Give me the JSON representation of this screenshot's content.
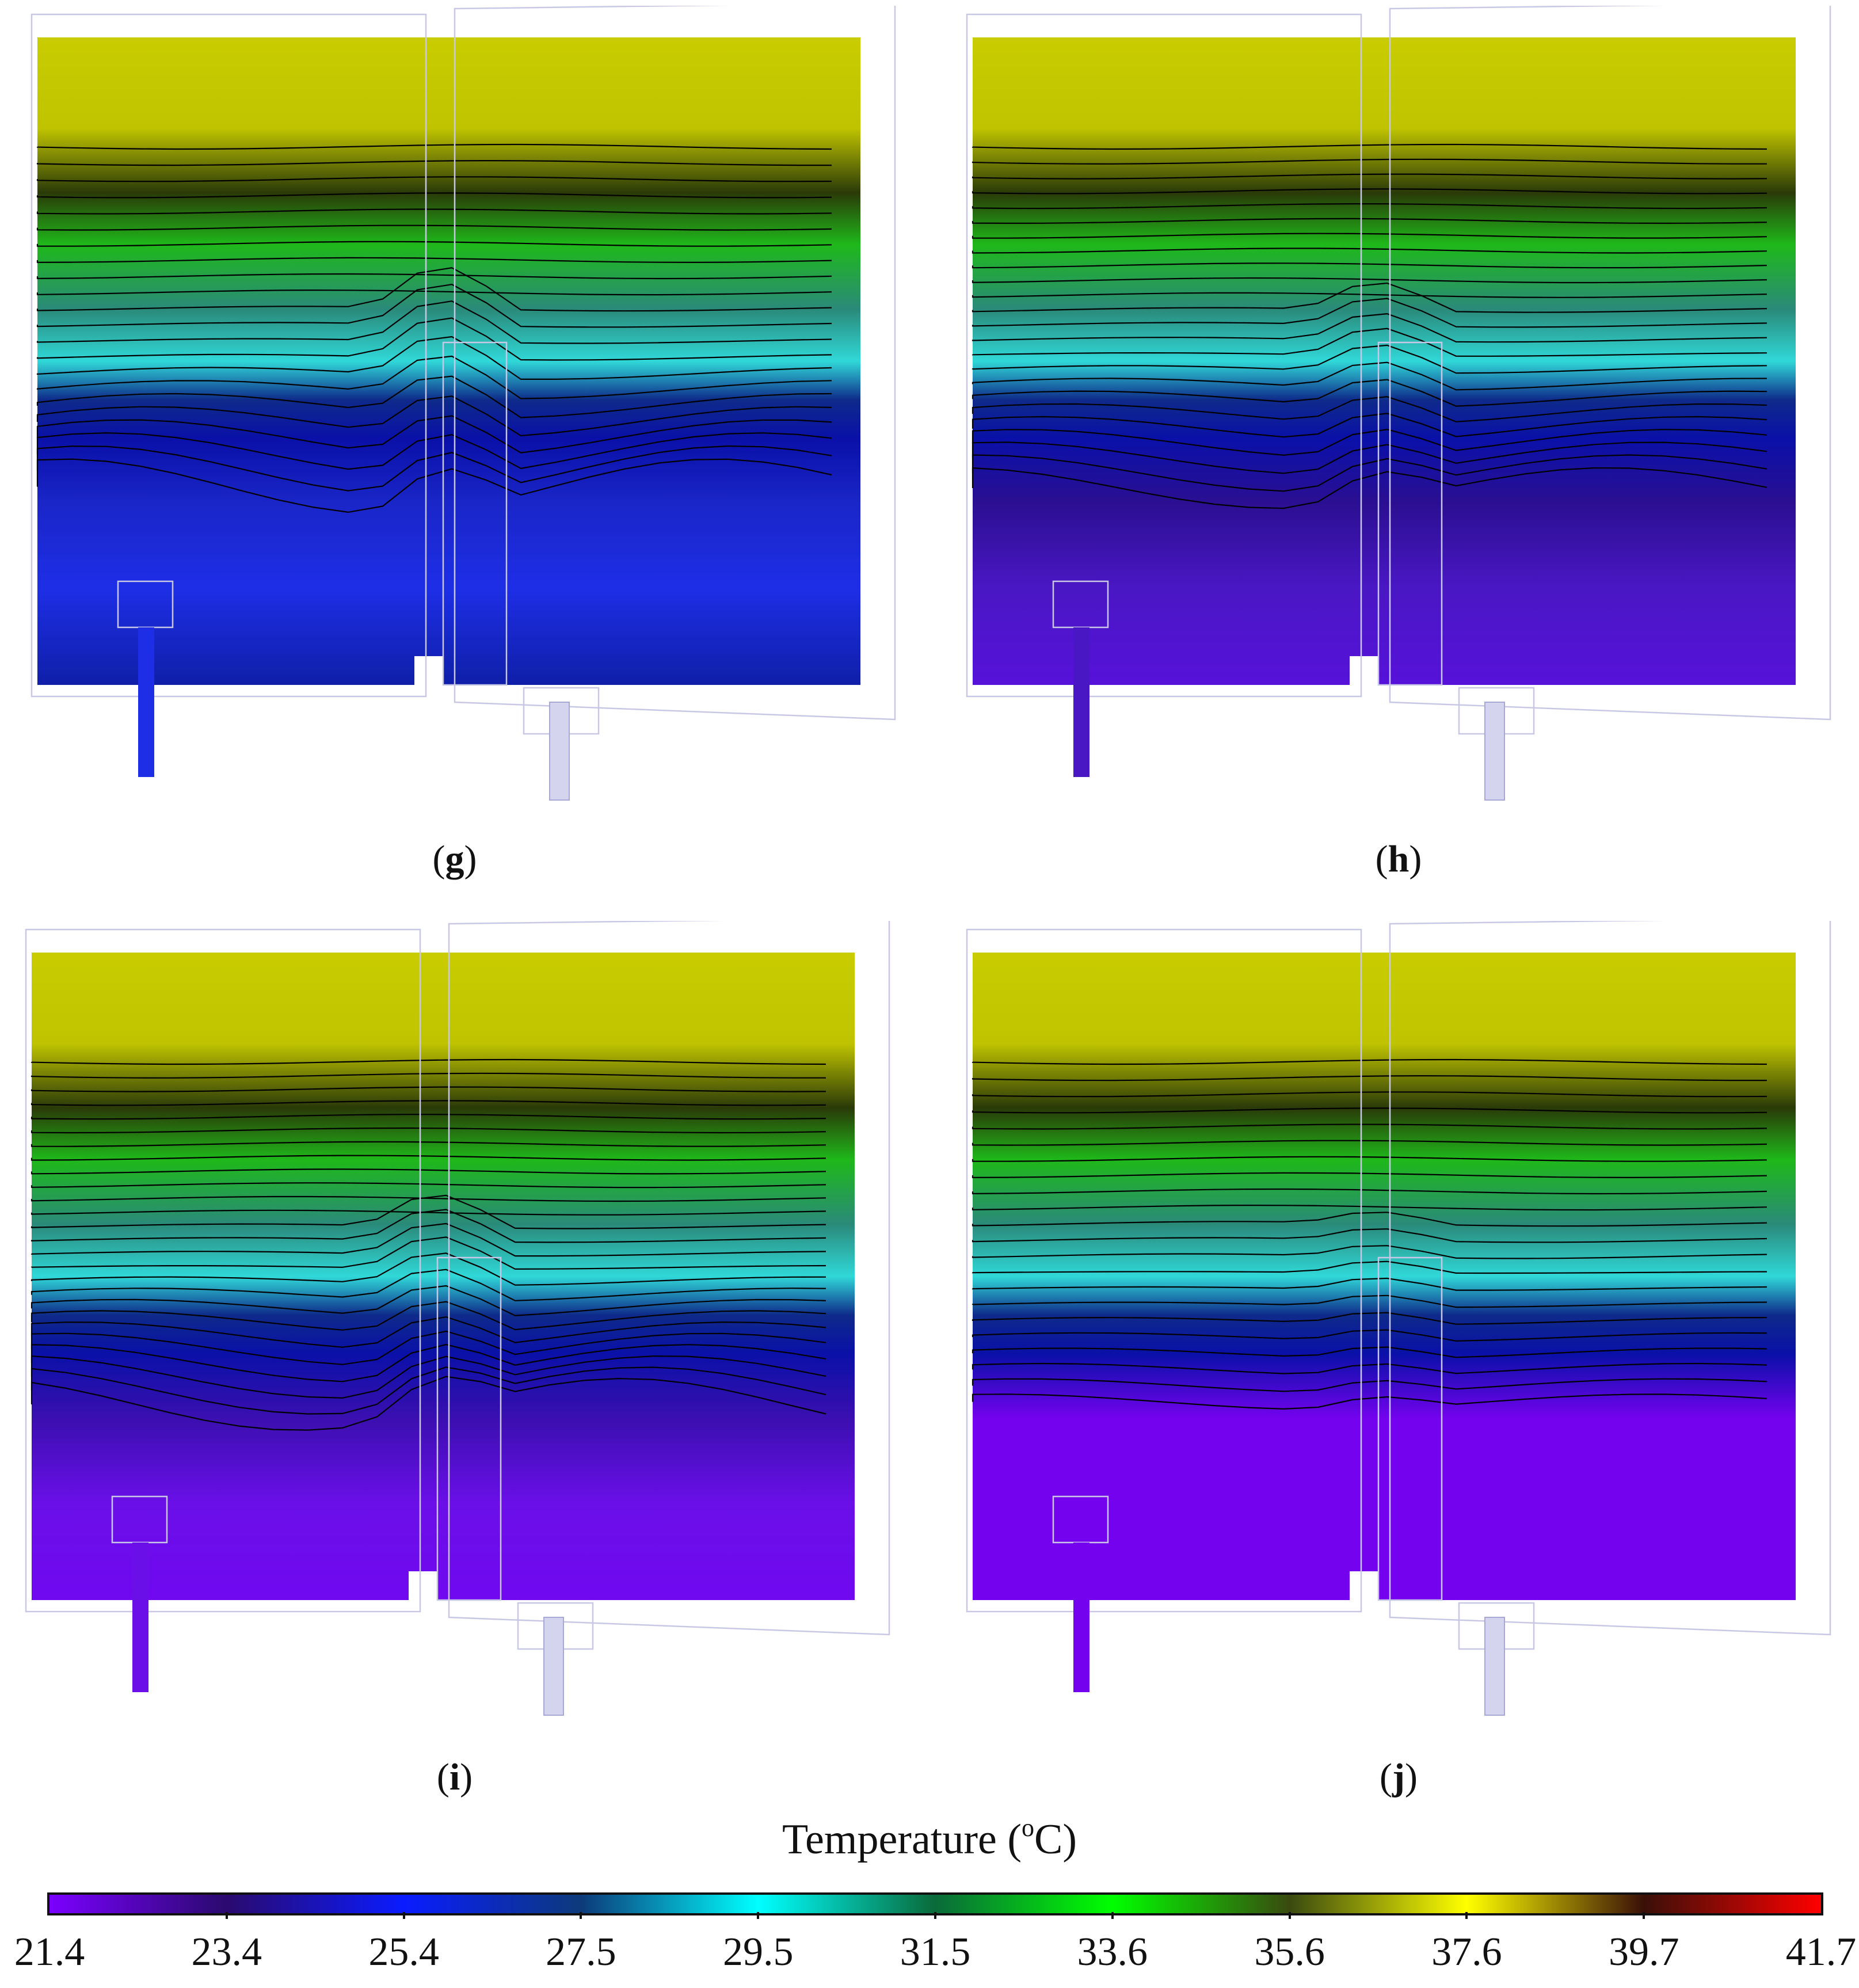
{
  "panels": [
    {
      "label": "g",
      "lower_color": "#1e2ee6",
      "lower_mid": "#1a26c8",
      "bottom_color": "#0f1fa8",
      "contours": 22,
      "dip": 0.18
    },
    {
      "label": "h",
      "lower_color": "#4a17c4",
      "lower_mid": "#2b0f92",
      "bottom_color": "#5612d9",
      "contours": 24,
      "dip": 0.12
    },
    {
      "label": "i",
      "lower_color": "#6a0fe8",
      "lower_mid": "#3b0fb0",
      "bottom_color": "#7008f0",
      "contours": 26,
      "dip": 0.14
    },
    {
      "label": "j",
      "lower_color": "#7402ee",
      "lower_mid": "#7402ee",
      "bottom_color": "#7402ee",
      "contours": 22,
      "dip": 0.05
    }
  ],
  "colorbar": {
    "title_prefix": "Temperature (",
    "title_sup": "o",
    "title_suffix": "C)",
    "ticks": [
      "21.4",
      "23.4",
      "25.4",
      "27.5",
      "29.5",
      "31.5",
      "33.6",
      "35.6",
      "37.6",
      "39.7",
      "41.7"
    ],
    "stops": [
      "#7a00ff",
      "#2a0a6e",
      "#0a1cff",
      "#0d3a7a",
      "#00ffff",
      "#0a6a3a",
      "#00ff00",
      "#3a4a10",
      "#ffff00",
      "#3a1008",
      "#ff0000"
    ]
  }
}
